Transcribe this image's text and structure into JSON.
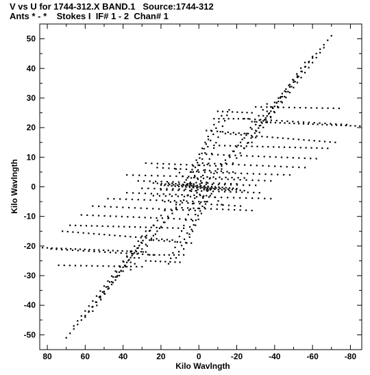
{
  "header": {
    "line1": "V vs U for 1744-312.X BAND.1   Source:1744-312",
    "line2": "Ants * - *    Stokes I  IF# 1 - 2  Chan# 1"
  },
  "chart_data": {
    "type": "scatter",
    "title": "V vs U for 1744-312.X BAND.1   Source:1744-312",
    "subtitle": "Ants * - *    Stokes I  IF# 1 - 2  Chan# 1",
    "xlabel": "Kilo Wavlngth",
    "ylabel": "Kilo Wavlngth",
    "xlim": [
      84,
      -86
    ],
    "ylim": [
      -55,
      55
    ],
    "x_ticks": [
      80,
      60,
      40,
      20,
      0,
      -20,
      -40,
      -60,
      -80
    ],
    "x_tick_labels": [
      "80",
      "60",
      "40",
      "20",
      "0",
      "-20",
      "-40",
      "-60",
      "-80"
    ],
    "y_ticks": [
      50,
      40,
      30,
      20,
      10,
      0,
      -10,
      -20,
      -30,
      -40,
      -50
    ],
    "y_tick_labels": [
      "50",
      "40",
      "30",
      "20",
      "10",
      "0",
      "-10",
      "-20",
      "-30",
      "-40",
      "-50"
    ],
    "grid": false,
    "marker_color": "#000000",
    "tracks": [
      {
        "from": [
          -70,
          51
        ],
        "to": [
          -4,
          1.5
        ],
        "n": 34
      },
      {
        "from": [
          70,
          -51
        ],
        "to": [
          4,
          -1.5
        ],
        "n": 34
      },
      {
        "from": [
          -66,
          47
        ],
        "to": [
          -28,
          15
        ],
        "n": 20
      },
      {
        "from": [
          66,
          -47
        ],
        "to": [
          28,
          -15
        ],
        "n": 20
      },
      {
        "from": [
          -60,
          44
        ],
        "to": [
          -36,
          22
        ],
        "n": 14
      },
      {
        "from": [
          60,
          -44
        ],
        "to": [
          36,
          -22
        ],
        "n": 14
      },
      {
        "from": [
          -56,
          42
        ],
        "to": [
          -24,
          13
        ],
        "n": 16
      },
      {
        "from": [
          56,
          -42
        ],
        "to": [
          24,
          -13
        ],
        "n": 16
      },
      {
        "from": [
          -52,
          37
        ],
        "to": [
          -30,
          19
        ],
        "n": 12
      },
      {
        "from": [
          52,
          -37
        ],
        "to": [
          30,
          -19
        ],
        "n": 12
      },
      {
        "from": [
          -43,
          30
        ],
        "to": [
          -18,
          8
        ],
        "n": 14
      },
      {
        "from": [
          43,
          -30
        ],
        "to": [
          18,
          -8
        ],
        "n": 14
      },
      {
        "from": [
          -36,
          28
        ],
        "to": [
          -12,
          6
        ],
        "n": 12
      },
      {
        "from": [
          36,
          -28
        ],
        "to": [
          12,
          -6
        ],
        "n": 12
      },
      {
        "from": [
          -16,
          26
        ],
        "to": [
          -1,
          2
        ],
        "n": 14
      },
      {
        "from": [
          16,
          -26
        ],
        "to": [
          1,
          -2
        ],
        "n": 14
      },
      {
        "from": [
          -12,
          24
        ],
        "to": [
          4,
          1
        ],
        "n": 12
      },
      {
        "from": [
          12,
          -24
        ],
        "to": [
          -4,
          -1
        ],
        "n": 12
      },
      {
        "from": [
          -8,
          21
        ],
        "to": [
          6,
          3
        ],
        "n": 10
      },
      {
        "from": [
          8,
          -21
        ],
        "to": [
          -6,
          -3
        ],
        "n": 10
      },
      {
        "from": [
          -5,
          16
        ],
        "to": [
          3,
          5
        ],
        "n": 8
      },
      {
        "from": [
          5,
          -16
        ],
        "to": [
          -3,
          -5
        ],
        "n": 8
      },
      {
        "from": [
          -85,
          20.5
        ],
        "to": [
          -28,
          22
        ],
        "n": 24
      },
      {
        "from": [
          85,
          -20.5
        ],
        "to": [
          28,
          -22
        ],
        "n": 24
      },
      {
        "from": [
          -74,
          26.5
        ],
        "to": [
          -30,
          27
        ],
        "n": 16
      },
      {
        "from": [
          74,
          -26.5
        ],
        "to": [
          30,
          -27
        ],
        "n": 16
      },
      {
        "from": [
          -78,
          21
        ],
        "to": [
          -24,
          23
        ],
        "n": 20
      },
      {
        "from": [
          78,
          -21
        ],
        "to": [
          24,
          -23
        ],
        "n": 20
      },
      {
        "from": [
          -72,
          15
        ],
        "to": [
          -14,
          18
        ],
        "n": 22
      },
      {
        "from": [
          72,
          -15
        ],
        "to": [
          14,
          -18
        ],
        "n": 22
      },
      {
        "from": [
          -68,
          13
        ],
        "to": [
          -8,
          14
        ],
        "n": 22
      },
      {
        "from": [
          68,
          -13
        ],
        "to": [
          8,
          -14
        ],
        "n": 22
      },
      {
        "from": [
          -62,
          9.5
        ],
        "to": [
          -4,
          11
        ],
        "n": 20
      },
      {
        "from": [
          62,
          -9.5
        ],
        "to": [
          4,
          -11
        ],
        "n": 20
      },
      {
        "from": [
          -56,
          6.5
        ],
        "to": [
          -2,
          8
        ],
        "n": 18
      },
      {
        "from": [
          56,
          -6.5
        ],
        "to": [
          2,
          -8
        ],
        "n": 18
      },
      {
        "from": [
          -48,
          4
        ],
        "to": [
          0,
          5
        ],
        "n": 16
      },
      {
        "from": [
          48,
          -4
        ],
        "to": [
          0,
          -5
        ],
        "n": 16
      },
      {
        "from": [
          -38,
          2
        ],
        "to": [
          4,
          3
        ],
        "n": 14
      },
      {
        "from": [
          38,
          -2
        ],
        "to": [
          -4,
          -3
        ],
        "n": 14
      },
      {
        "from": [
          -30,
          0.5
        ],
        "to": [
          6,
          1
        ],
        "n": 12
      },
      {
        "from": [
          30,
          -0.5
        ],
        "to": [
          -6,
          -1
        ],
        "n": 12
      },
      {
        "from": [
          -10,
          25.5
        ],
        "to": [
          -28,
          25
        ],
        "n": 8
      },
      {
        "from": [
          10,
          -25.5
        ],
        "to": [
          28,
          -25
        ],
        "n": 8
      },
      {
        "from": [
          -8,
          23
        ],
        "to": [
          -26,
          23
        ],
        "n": 8
      },
      {
        "from": [
          8,
          -23
        ],
        "to": [
          26,
          -23
        ],
        "n": 8
      },
      {
        "from": [
          -4,
          19
        ],
        "to": [
          -24,
          18
        ],
        "n": 8
      },
      {
        "from": [
          4,
          -19
        ],
        "to": [
          24,
          -18
        ],
        "n": 8
      },
      {
        "from": [
          22,
          6.5
        ],
        "to": [
          -18,
          5
        ],
        "n": 14
      },
      {
        "from": [
          -22,
          -6.5
        ],
        "to": [
          18,
          -5
        ],
        "n": 14
      },
      {
        "from": [
          28,
          8
        ],
        "to": [
          -12,
          7
        ],
        "n": 14
      },
      {
        "from": [
          -28,
          -8
        ],
        "to": [
          12,
          -7
        ],
        "n": 14
      },
      {
        "from": [
          32,
          2
        ],
        "to": [
          -20,
          1
        ],
        "n": 18
      },
      {
        "from": [
          -32,
          -2
        ],
        "to": [
          20,
          -1
        ],
        "n": 18
      },
      {
        "from": [
          38,
          4
        ],
        "to": [
          -24,
          3
        ],
        "n": 20
      },
      {
        "from": [
          -38,
          -4
        ],
        "to": [
          24,
          -3
        ],
        "n": 20
      },
      {
        "from": [
          20,
          0.6
        ],
        "to": [
          -16,
          -1.2
        ],
        "n": 20
      },
      {
        "from": [
          -20,
          -0.6
        ],
        "to": [
          16,
          1.2
        ],
        "n": 20
      },
      {
        "from": [
          24,
          1.3
        ],
        "to": [
          -8,
          -0.6
        ],
        "n": 16
      },
      {
        "from": [
          -24,
          -1.3
        ],
        "to": [
          8,
          0.6
        ],
        "n": 16
      },
      {
        "from": [
          12,
          6
        ],
        "to": [
          -4,
          -5
        ],
        "n": 10
      },
      {
        "from": [
          -12,
          -6
        ],
        "to": [
          4,
          5
        ],
        "n": 10
      }
    ]
  }
}
